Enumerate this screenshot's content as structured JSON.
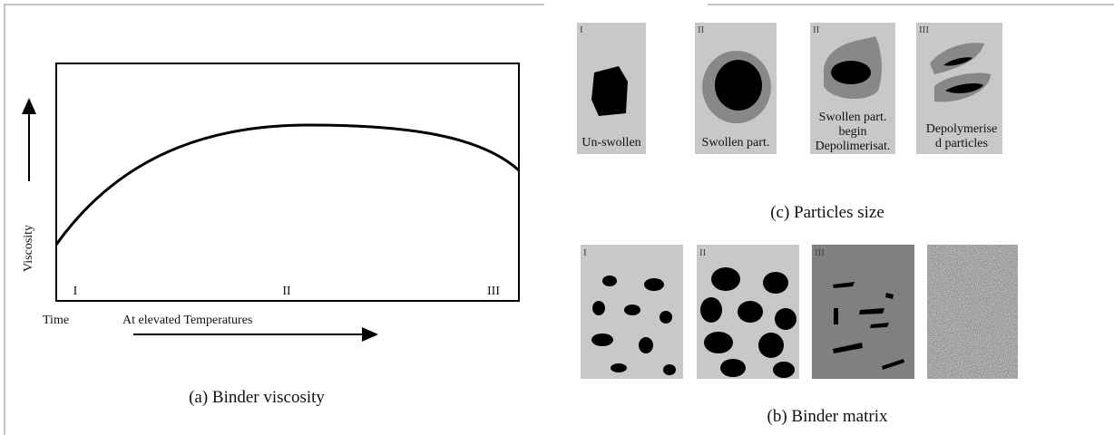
{
  "panel_a": {
    "y_label": "Viscosity",
    "stages": [
      "I",
      "II",
      "III"
    ],
    "x_label": "Time",
    "x_note": "At elevated Temperatures",
    "caption": "(a)  Binder viscosity"
  },
  "panel_c": {
    "items": [
      {
        "numeral": "I",
        "label": [
          "Un-swollen"
        ]
      },
      {
        "numeral": "II",
        "label": [
          "Swollen part."
        ]
      },
      {
        "numeral": "II",
        "label": [
          "Swollen part.",
          "begin",
          "Depolimerisat."
        ]
      },
      {
        "numeral": "III",
        "label": [
          "Depolymerise",
          "d particles"
        ]
      }
    ],
    "caption": "(c)  Particles size"
  },
  "panel_b": {
    "numerals": [
      "I",
      "II",
      "III"
    ],
    "caption": "(b)  Binder matrix"
  }
}
